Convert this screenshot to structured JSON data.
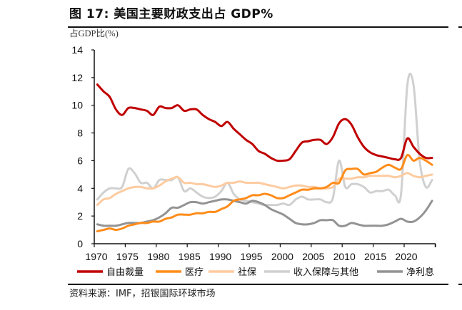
{
  "header": {
    "title": "图 17: 美国主要财政支出占 GDP%"
  },
  "footer": {
    "source": "资料来源：IMF，招银国际环球市场"
  },
  "chart_data": {
    "type": "line",
    "title": "图 17: 美国主要财政支出占 GDP%",
    "ylabel": "占GDP比(%)",
    "xlabel": "",
    "ylim": [
      0,
      14
    ],
    "yticks": [
      0,
      2,
      4,
      6,
      8,
      10,
      12,
      14
    ],
    "xticks": [
      1970,
      1975,
      1980,
      1985,
      1990,
      1995,
      2000,
      2005,
      2010,
      2015,
      2020
    ],
    "legend_position": "bottom",
    "grid": false,
    "x": [
      1970,
      1971,
      1972,
      1973,
      1974,
      1975,
      1976,
      1977,
      1978,
      1979,
      1980,
      1981,
      1982,
      1983,
      1984,
      1985,
      1986,
      1987,
      1988,
      1989,
      1990,
      1991,
      1992,
      1993,
      1994,
      1995,
      1996,
      1997,
      1998,
      1999,
      2000,
      2001,
      2002,
      2003,
      2004,
      2005,
      2006,
      2007,
      2008,
      2009,
      2010,
      2011,
      2012,
      2013,
      2014,
      2015,
      2016,
      2017,
      2018,
      2019,
      2020,
      2021,
      2022,
      2023,
      2024
    ],
    "series": [
      {
        "name": "自由裁量",
        "color": "#C00000",
        "values": [
          11.5,
          11.0,
          10.6,
          9.7,
          9.3,
          9.8,
          9.8,
          9.7,
          9.6,
          9.3,
          9.9,
          9.8,
          9.8,
          10.0,
          9.6,
          9.7,
          9.7,
          9.3,
          9.0,
          8.8,
          8.5,
          8.8,
          8.3,
          7.9,
          7.5,
          7.2,
          6.7,
          6.5,
          6.2,
          6.0,
          6.0,
          6.1,
          6.7,
          7.3,
          7.4,
          7.5,
          7.5,
          7.2,
          7.7,
          8.7,
          9.0,
          8.6,
          7.7,
          7.0,
          6.6,
          6.4,
          6.3,
          6.2,
          6.1,
          6.2,
          7.6,
          7.0,
          6.5,
          6.2,
          6.2
        ]
      },
      {
        "name": "医疗",
        "color": "#FF8C1A",
        "values": [
          0.9,
          1.0,
          1.1,
          1.0,
          1.1,
          1.3,
          1.4,
          1.5,
          1.5,
          1.6,
          1.6,
          1.8,
          1.9,
          2.1,
          2.1,
          2.1,
          2.2,
          2.2,
          2.3,
          2.3,
          2.5,
          2.7,
          3.1,
          3.2,
          3.3,
          3.5,
          3.5,
          3.6,
          3.5,
          3.3,
          3.3,
          3.5,
          3.7,
          3.9,
          3.9,
          4.0,
          4.0,
          4.1,
          4.4,
          4.4,
          5.3,
          5.4,
          5.4,
          5.0,
          5.1,
          5.2,
          5.5,
          5.7,
          5.5,
          5.4,
          6.4,
          6.0,
          6.2,
          6.0,
          5.7
        ]
      },
      {
        "name": "社保",
        "color": "#FDCBA0",
        "values": [
          2.8,
          3.2,
          3.3,
          3.6,
          3.8,
          4.0,
          4.1,
          4.1,
          4.0,
          4.0,
          4.2,
          4.5,
          4.7,
          4.8,
          4.4,
          4.4,
          4.3,
          4.3,
          4.2,
          4.1,
          4.2,
          4.4,
          4.4,
          4.5,
          4.4,
          4.4,
          4.4,
          4.3,
          4.2,
          4.1,
          4.0,
          4.1,
          4.2,
          4.2,
          4.1,
          4.1,
          4.0,
          4.0,
          4.1,
          4.7,
          4.7,
          4.7,
          4.8,
          4.8,
          4.9,
          4.9,
          4.9,
          4.9,
          4.8,
          4.9,
          5.1,
          4.9,
          4.8,
          4.9,
          5.0
        ]
      },
      {
        "name": "收入保障与其他",
        "color": "#D0D0D0",
        "values": [
          3.2,
          3.7,
          4.0,
          4.0,
          4.1,
          5.4,
          5.1,
          4.4,
          4.4,
          4.0,
          4.6,
          4.6,
          4.6,
          4.8,
          3.8,
          4.0,
          3.7,
          3.4,
          3.3,
          3.4,
          3.8,
          4.4,
          3.6,
          3.2,
          3.1,
          3.0,
          2.9,
          2.8,
          2.8,
          2.8,
          2.9,
          2.8,
          3.2,
          3.4,
          3.2,
          3.2,
          3.2,
          3.0,
          3.3,
          6.0,
          4.1,
          4.3,
          4.3,
          4.1,
          3.7,
          3.8,
          3.8,
          3.9,
          3.5,
          3.6,
          11.4,
          11.5,
          6.0,
          4.1,
          4.6
        ]
      },
      {
        "name": "净利息",
        "color": "#939393",
        "values": [
          1.4,
          1.3,
          1.3,
          1.3,
          1.4,
          1.5,
          1.5,
          1.5,
          1.6,
          1.7,
          1.9,
          2.2,
          2.6,
          2.6,
          2.8,
          3.0,
          3.0,
          2.9,
          3.0,
          3.1,
          3.2,
          3.2,
          3.1,
          3.0,
          2.9,
          3.1,
          3.0,
          2.8,
          2.5,
          2.3,
          2.1,
          1.8,
          1.5,
          1.4,
          1.4,
          1.5,
          1.7,
          1.7,
          1.7,
          1.3,
          1.3,
          1.5,
          1.4,
          1.3,
          1.3,
          1.3,
          1.3,
          1.4,
          1.6,
          1.8,
          1.6,
          1.6,
          1.9,
          2.4,
          3.1
        ]
      }
    ]
  }
}
